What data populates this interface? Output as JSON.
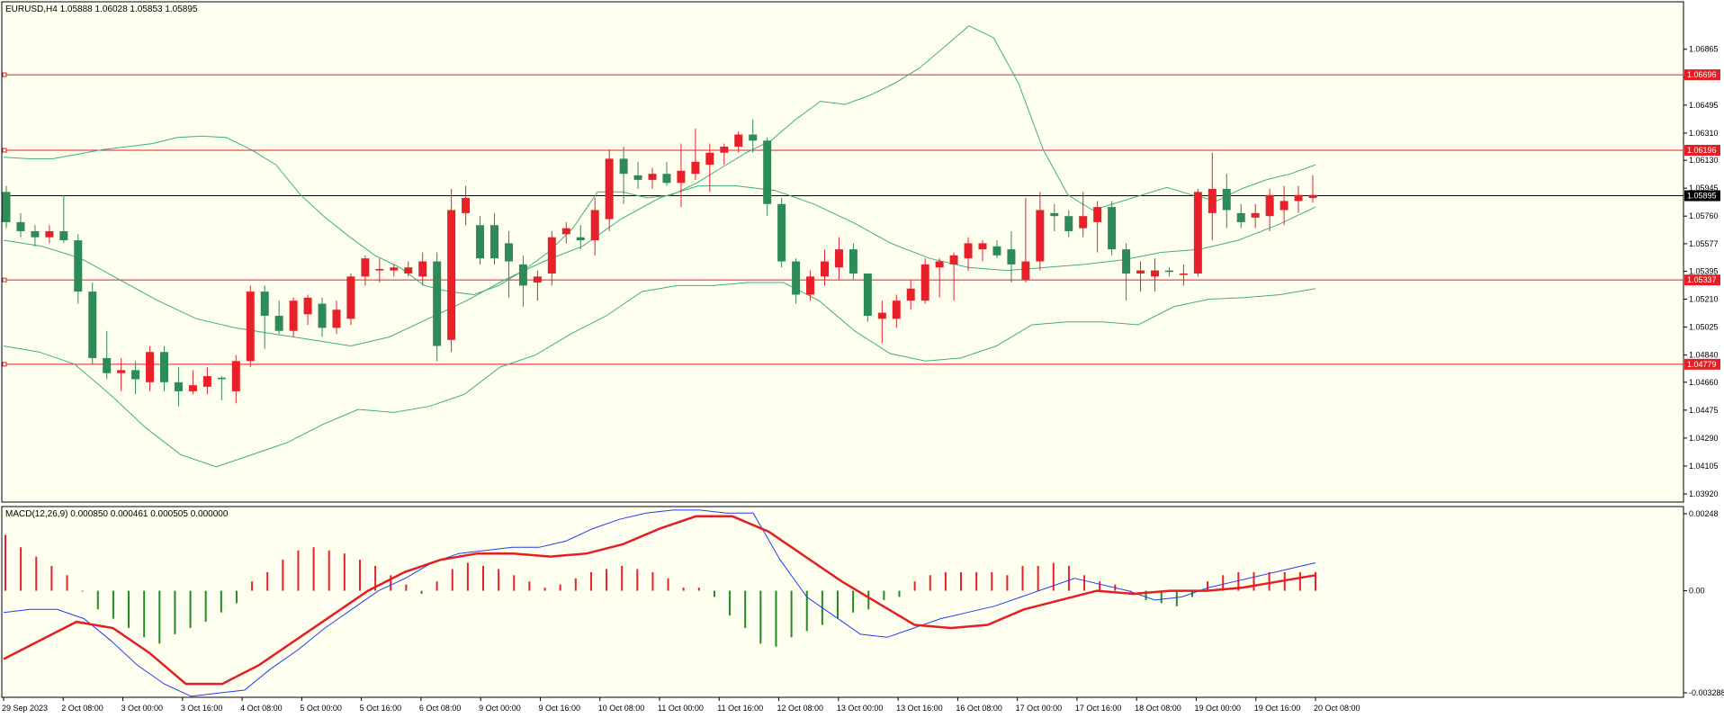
{
  "chart_data": [
    {
      "type": "candlestick",
      "symbol_info": "EURUSD,H4  1.05888 1.06028 1.05853 1.05895",
      "indicators": [
        "Bollinger Bands"
      ],
      "ylim": [
        1.0392,
        1.0706
      ],
      "y_tick_labels": [
        "1.06865",
        "1.06680",
        "1.06495",
        "1.06310",
        "1.06130",
        "1.05945",
        "1.05760",
        "1.05577",
        "1.05395",
        "1.05210",
        "1.05025",
        "1.04840",
        "1.04660",
        "1.04475",
        "1.04290",
        "1.04105",
        "1.03920"
      ],
      "current_price": "1.05895",
      "horizontal_levels": [
        "1.06696",
        "1.06196",
        "1.05337",
        "1.04779"
      ],
      "x_tick_labels": [
        "29 Sep 2023",
        "2 Oct 08:00",
        "3 Oct 00:00",
        "3 Oct 16:00",
        "4 Oct 08:00",
        "5 Oct 00:00",
        "5 Oct 16:00",
        "6 Oct 08:00",
        "9 Oct 00:00",
        "9 Oct 16:00",
        "10 Oct 08:00",
        "11 Oct 00:00",
        "11 Oct 16:00",
        "12 Oct 08:00",
        "13 Oct 00:00",
        "13 Oct 16:00",
        "16 Oct 08:00",
        "17 Oct 00:00",
        "17 Oct 16:00",
        "18 Oct 08:00",
        "19 Oct 00:00",
        "19 Oct 16:00",
        "20 Oct 08:00"
      ],
      "colors": {
        "bull": "#e8202a",
        "bear": "#2e8b57",
        "bands": "#3fae7d",
        "level": "#e31e24",
        "price_line": "#000000",
        "background": "#fffff0"
      },
      "candles": [
        [
          1.0592,
          1.0596,
          1.0568,
          1.0572
        ],
        [
          1.0572,
          1.0578,
          1.0562,
          1.0566
        ],
        [
          1.0566,
          1.057,
          1.0556,
          1.0562
        ],
        [
          1.0562,
          1.057,
          1.0558,
          1.0566
        ],
        [
          1.0566,
          1.059,
          1.0558,
          1.056
        ],
        [
          1.056,
          1.0564,
          1.0518,
          1.0526
        ],
        [
          1.0526,
          1.0532,
          1.0478,
          1.0482
        ],
        [
          1.0482,
          1.05,
          1.0468,
          1.0472
        ],
        [
          1.0472,
          1.0482,
          1.046,
          1.0474
        ],
        [
          1.0474,
          1.048,
          1.0458,
          1.0468
        ],
        [
          1.0466,
          1.049,
          1.046,
          1.0486
        ],
        [
          1.0486,
          1.049,
          1.046,
          1.0466
        ],
        [
          1.0466,
          1.0476,
          1.045,
          1.046
        ],
        [
          1.046,
          1.0474,
          1.0458,
          1.0464
        ],
        [
          1.0463,
          1.0476,
          1.0458,
          1.047
        ],
        [
          1.0469,
          1.047,
          1.0454,
          1.0468
        ],
        [
          1.046,
          1.0484,
          1.0452,
          1.048
        ],
        [
          1.048,
          1.053,
          1.0476,
          1.0526
        ],
        [
          1.0526,
          1.053,
          1.0488,
          1.051
        ],
        [
          1.051,
          1.052,
          1.0498,
          1.05
        ],
        [
          1.05,
          1.0522,
          1.0496,
          1.052
        ],
        [
          1.0511,
          1.0524,
          1.0504,
          1.0522
        ],
        [
          1.0518,
          1.0522,
          1.0496,
          1.0502
        ],
        [
          1.0502,
          1.052,
          1.0498,
          1.0514
        ],
        [
          1.0508,
          1.0538,
          1.0504,
          1.0536
        ],
        [
          1.0536,
          1.055,
          1.053,
          1.0548
        ],
        [
          1.054,
          1.0548,
          1.0532,
          1.0541
        ],
        [
          1.054,
          1.0544,
          1.0536,
          1.0542
        ],
        [
          1.0538,
          1.0546,
          1.0536,
          1.0542
        ],
        [
          1.0536,
          1.0552,
          1.053,
          1.0546
        ],
        [
          1.0546,
          1.0552,
          1.048,
          1.049
        ],
        [
          1.0494,
          1.0594,
          1.0486,
          1.058
        ],
        [
          1.0578,
          1.0596,
          1.057,
          1.0588
        ],
        [
          1.057,
          1.0576,
          1.0544,
          1.0548
        ],
        [
          1.057,
          1.0578,
          1.0544,
          1.0548
        ],
        [
          1.0558,
          1.0566,
          1.0522,
          1.0546
        ],
        [
          1.0544,
          1.055,
          1.0516,
          1.053
        ],
        [
          1.0532,
          1.054,
          1.052,
          1.0536
        ],
        [
          1.0538,
          1.0566,
          1.053,
          1.0562
        ],
        [
          1.0564,
          1.0572,
          1.0558,
          1.0568
        ],
        [
          1.0562,
          1.057,
          1.0554,
          1.056
        ],
        [
          1.056,
          1.0588,
          1.055,
          1.058
        ],
        [
          1.0574,
          1.062,
          1.0566,
          1.0614
        ],
        [
          1.0614,
          1.0622,
          1.0584,
          1.0604
        ],
        [
          1.0603,
          1.0612,
          1.0594,
          1.06
        ],
        [
          1.06,
          1.0608,
          1.0594,
          1.0604
        ],
        [
          1.0604,
          1.0612,
          1.0596,
          1.0598
        ],
        [
          1.0598,
          1.0624,
          1.0582,
          1.0606
        ],
        [
          1.0604,
          1.0634,
          1.06,
          1.0612
        ],
        [
          1.061,
          1.0624,
          1.0592,
          1.0618
        ],
        [
          1.0618,
          1.0624,
          1.061,
          1.0622
        ],
        [
          1.0622,
          1.0632,
          1.0618,
          1.063
        ],
        [
          1.063,
          1.064,
          1.0618,
          1.0626
        ],
        [
          1.0626,
          1.0628,
          1.0576,
          1.0584
        ],
        [
          1.0584,
          1.0588,
          1.0542,
          1.0546
        ],
        [
          1.0546,
          1.0548,
          1.0518,
          1.0524
        ],
        [
          1.0524,
          1.054,
          1.052,
          1.0536
        ],
        [
          1.0536,
          1.0554,
          1.053,
          1.0546
        ],
        [
          1.0542,
          1.0562,
          1.0534,
          1.0554
        ],
        [
          1.0554,
          1.0558,
          1.0534,
          1.0538
        ],
        [
          1.0538,
          1.0538,
          1.0506,
          1.051
        ],
        [
          1.0508,
          1.052,
          1.0492,
          1.0512
        ],
        [
          1.0508,
          1.0524,
          1.0502,
          1.052
        ],
        [
          1.052,
          1.0534,
          1.0514,
          1.0528
        ],
        [
          1.052,
          1.0548,
          1.0518,
          1.0544
        ],
        [
          1.0542,
          1.0548,
          1.0522,
          1.0546
        ],
        [
          1.0544,
          1.0552,
          1.052,
          1.055
        ],
        [
          1.0548,
          1.0562,
          1.054,
          1.0558
        ],
        [
          1.0554,
          1.056,
          1.0546,
          1.0558
        ],
        [
          1.0556,
          1.056,
          1.0548,
          1.055
        ],
        [
          1.0554,
          1.0566,
          1.0532,
          1.0544
        ],
        [
          1.0534,
          1.0588,
          1.0532,
          1.0546
        ],
        [
          1.0546,
          1.0592,
          1.054,
          1.058
        ],
        [
          1.0578,
          1.0584,
          1.0566,
          1.0576
        ],
        [
          1.0576,
          1.058,
          1.0562,
          1.0566
        ],
        [
          1.0568,
          1.0592,
          1.0562,
          1.0576
        ],
        [
          1.0572,
          1.0586,
          1.0552,
          1.0582
        ],
        [
          1.0582,
          1.0586,
          1.055,
          1.0554
        ],
        [
          1.0554,
          1.0558,
          1.052,
          1.0538
        ],
        [
          1.0538,
          1.0546,
          1.0526,
          1.054
        ],
        [
          1.0536,
          1.0548,
          1.0526,
          1.054
        ],
        [
          1.054,
          1.0542,
          1.0536,
          1.0539
        ],
        [
          1.0537,
          1.0544,
          1.053,
          1.0538
        ],
        [
          1.0538,
          1.0594,
          1.0536,
          1.0592
        ],
        [
          1.0578,
          1.0618,
          1.056,
          1.0594
        ],
        [
          1.0594,
          1.0604,
          1.0568,
          1.058
        ],
        [
          1.0578,
          1.0584,
          1.0568,
          1.0572
        ],
        [
          1.0575,
          1.0584,
          1.0568,
          1.0578
        ],
        [
          1.0576,
          1.0594,
          1.0566,
          1.059
        ],
        [
          1.058,
          1.0596,
          1.057,
          1.0586
        ],
        [
          1.0586,
          1.0596,
          1.0578,
          1.059
        ],
        [
          1.0588,
          1.0603,
          1.0585,
          1.059
        ]
      ],
      "bollinger_upper": [
        1.0615,
        1.0614,
        1.0614,
        1.0617,
        1.062,
        1.0622,
        1.0624,
        1.0628,
        1.0629,
        1.0628,
        1.062,
        1.061,
        1.059,
        1.0575,
        1.0562,
        1.055,
        1.0542,
        1.053,
        1.0526,
        1.0524,
        1.053,
        1.054,
        1.0552,
        1.0568,
        1.0592,
        1.0592,
        1.0588,
        1.059,
        1.0598,
        1.0608,
        1.0618,
        1.0626,
        1.064,
        1.0652,
        1.065,
        1.0656,
        1.0664,
        1.0674,
        1.0688,
        1.0702,
        1.0694,
        1.0664,
        1.062,
        1.059,
        1.058,
        1.0585,
        1.059,
        1.0595,
        1.059,
        1.0586,
        1.0594,
        1.06,
        1.0604,
        1.061
      ],
      "bollinger_middle": [
        1.056,
        1.0556,
        1.0548,
        1.0534,
        1.052,
        1.0508,
        1.0502,
        1.0498,
        1.0494,
        1.049,
        1.0496,
        1.0508,
        1.052,
        1.0534,
        1.0546,
        1.0556,
        1.0574,
        1.0588,
        1.0596,
        1.0596,
        1.0593,
        1.0584,
        1.0572,
        1.0558,
        1.0548,
        1.0542,
        1.054,
        1.0542,
        1.0544,
        1.0547,
        1.0552,
        1.0554,
        1.056,
        1.057,
        1.0582
      ],
      "bollinger_lower": [
        1.049,
        1.0486,
        1.0478,
        1.0458,
        1.0436,
        1.0418,
        1.041,
        1.0418,
        1.0426,
        1.0438,
        1.0448,
        1.0446,
        1.045,
        1.0458,
        1.0476,
        1.0484,
        1.0498,
        1.051,
        1.0526,
        1.053,
        1.053,
        1.0532,
        1.0532,
        1.052,
        1.05,
        1.0485,
        1.048,
        1.0482,
        1.049,
        1.0504,
        1.0506,
        1.0506,
        1.0504,
        1.0516,
        1.0521,
        1.0522,
        1.0524,
        1.0528
      ]
    },
    {
      "type": "macd",
      "label": "MACD(12,26,9) 0.000850 0.000461 0.000505 0.000000",
      "ylim": [
        -0.003288,
        0.00248
      ],
      "y_tick_labels": [
        "0.00248",
        "0.00",
        "-0.003288"
      ],
      "colors": {
        "histogram_positive": "#e8202a",
        "histogram_negative": "#228b22",
        "macd": "#1f3df0",
        "signal": "#e31e24"
      },
      "histogram": [
        0.0018,
        0.0014,
        0.0011,
        0.0008,
        0.0005,
        0.0,
        -0.0006,
        -0.0009,
        -0.0012,
        -0.0015,
        -0.0017,
        -0.0014,
        -0.0012,
        -0.001,
        -0.0007,
        -0.0004,
        0.0003,
        0.0006,
        0.001,
        0.0013,
        0.0014,
        0.0013,
        0.0012,
        0.001,
        0.0008,
        0.0005,
        0.0002,
        -0.0001,
        0.0003,
        0.0007,
        0.0009,
        0.0008,
        0.0007,
        0.0005,
        0.0003,
        0.0001,
        0.0002,
        0.0004,
        0.0006,
        0.0007,
        0.0008,
        0.0007,
        0.0006,
        0.0004,
        0.0001,
        0.0001,
        -0.0002,
        -0.0008,
        -0.0012,
        -0.0017,
        -0.0018,
        -0.0015,
        -0.0013,
        -0.0011,
        -0.0009,
        -0.0007,
        -0.0006,
        -0.0003,
        -0.0002,
        0.0003,
        0.0005,
        0.0006,
        0.0006,
        0.0006,
        0.0006,
        0.0005,
        0.0008,
        0.0008,
        0.0009,
        0.0008,
        0.0005,
        0.0003,
        0.0002,
        0.0,
        -0.0003,
        -0.0004,
        -0.0005,
        -0.0002,
        0.0003,
        0.0005,
        0.0006,
        0.0006,
        0.0006,
        0.0006,
        0.0006,
        0.0006
      ],
      "macd_line": [
        -0.0007,
        -0.0006,
        -0.0006,
        -0.0009,
        -0.0016,
        -0.0024,
        -0.003,
        -0.0034,
        -0.0033,
        -0.0032,
        -0.0025,
        -0.0019,
        -0.0012,
        -0.0006,
        0.0,
        0.0004,
        0.0009,
        0.0012,
        0.0013,
        0.0014,
        0.0014,
        0.0016,
        0.002,
        0.0023,
        0.0025,
        0.0026,
        0.0026,
        0.0025,
        0.0025,
        0.001,
        -0.0002,
        -0.0008,
        -0.0014,
        -0.0015,
        -0.0012,
        -0.0009,
        -0.0007,
        -0.0005,
        -0.0002,
        0.0001,
        0.0004,
        0.0002,
        0.0,
        -0.0003,
        -0.0002,
        0.0001,
        0.0003,
        0.0005,
        0.0007,
        0.0009
      ],
      "signal_line": [
        -0.0022,
        -0.0016,
        -0.001,
        -0.0012,
        -0.002,
        -0.003,
        -0.003,
        -0.0024,
        -0.0016,
        -0.0008,
        0.0,
        0.0006,
        0.001,
        0.0012,
        0.0012,
        0.0011,
        0.0012,
        0.0015,
        0.002,
        0.0024,
        0.0024,
        0.0019,
        0.0011,
        0.0003,
        -0.0004,
        -0.0011,
        -0.0012,
        -0.0011,
        -0.0006,
        -0.0003,
        -0.0,
        -0.0001,
        0.0,
        0.0,
        0.0001,
        0.0003,
        0.0005
      ]
    }
  ]
}
